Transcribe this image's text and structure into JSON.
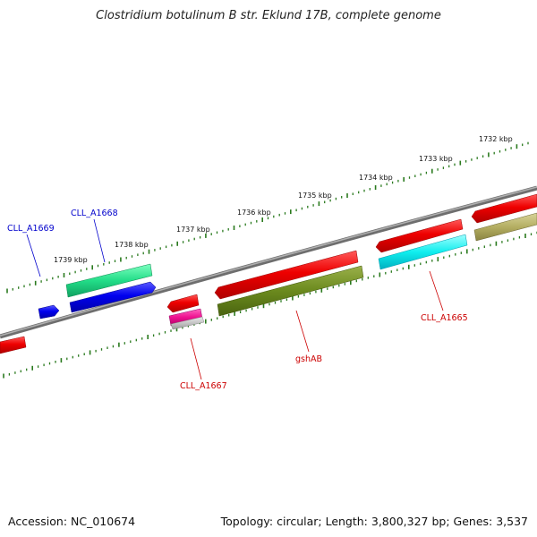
{
  "title": "Clostridium botulinum B str. Eklund 17B, complete genome",
  "footer": {
    "accession": "Accession: NC_010674",
    "summary": "Topology: circular; Length: 3,800,327 bp; Genes: 3,537"
  },
  "colors": {
    "backbone": "#7a7a7a",
    "tick": "#2a7a1e",
    "label_blue": "#0000cc",
    "label_red": "#cc0000"
  },
  "kbp_labels": [
    "1732 kbp",
    "1733 kbp",
    "1734 kbp",
    "1735 kbp",
    "1736 kbp",
    "1737 kbp",
    "1738 kbp",
    "1739 kbp"
  ],
  "gene_labels": {
    "CLL_A1669": "CLL_A1669",
    "CLL_A1668": "CLL_A1668",
    "CLL_A1667": "CLL_A1667",
    "gshAB": "gshAB",
    "CLL_A1665": "CLL_A1665"
  }
}
